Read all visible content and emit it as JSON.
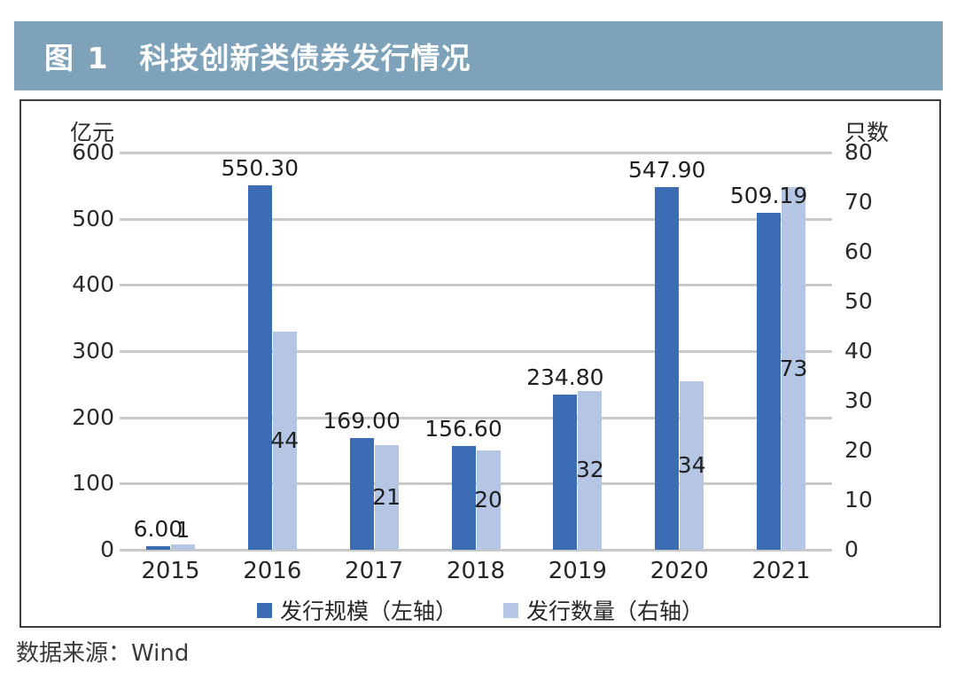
{
  "header": {
    "tag": "图 1",
    "title": "科技创新类债券发行情况"
  },
  "source": "数据来源：Wind",
  "colors": {
    "header_bg": "#7ea2ba",
    "header_text": "#ffffff",
    "bar_primary": "#3b6cb4",
    "bar_secondary": "#b4c6e4",
    "gridline": "#c9c9c9",
    "axis_text": "#2a2a2a",
    "border": "#3c3c3c"
  },
  "chart_data": {
    "type": "bar",
    "title": "科技创新类债券发行情况",
    "categories": [
      "2015",
      "2016",
      "2017",
      "2018",
      "2019",
      "2020",
      "2021"
    ],
    "series": [
      {
        "name": "发行规模（左轴）",
        "axis": "left",
        "color": "#3b6cb4",
        "values": [
          6.0,
          550.3,
          169.0,
          156.6,
          234.8,
          547.9,
          509.19
        ],
        "labels": [
          "6.00",
          "550.30",
          "169.00",
          "156.60",
          "234.80",
          "547.90",
          "509.19"
        ]
      },
      {
        "name": "发行数量（右轴）",
        "axis": "right",
        "color": "#b4c6e4",
        "values": [
          1,
          44,
          21,
          20,
          32,
          34,
          73
        ],
        "labels": [
          "1",
          "44",
          "21",
          "20",
          "32",
          "34",
          "73"
        ]
      }
    ],
    "left_axis": {
      "label": "亿元",
      "min": 0,
      "max": 600,
      "step": 100,
      "ticks": [
        600,
        500,
        400,
        300,
        200,
        100,
        0
      ]
    },
    "right_axis": {
      "label": "只数",
      "min": 0,
      "max": 80,
      "step": 10,
      "ticks": [
        80,
        70,
        60,
        50,
        40,
        30,
        20,
        10,
        0
      ]
    },
    "grid": true,
    "legend_position": "bottom"
  }
}
